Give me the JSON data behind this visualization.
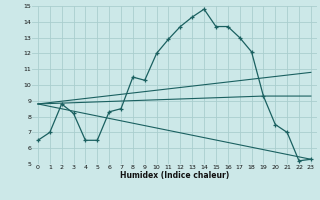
{
  "xlabel": "Humidex (Indice chaleur)",
  "bg_color": "#cce8e8",
  "grid_color": "#aacece",
  "line_color": "#1a6060",
  "xlim": [
    -0.5,
    23.5
  ],
  "ylim": [
    5,
    15
  ],
  "xticks": [
    0,
    1,
    2,
    3,
    4,
    5,
    6,
    7,
    8,
    9,
    10,
    11,
    12,
    13,
    14,
    15,
    16,
    17,
    18,
    19,
    20,
    21,
    22,
    23
  ],
  "yticks": [
    5,
    6,
    7,
    8,
    9,
    10,
    11,
    12,
    13,
    14,
    15
  ],
  "curve1_x": [
    0,
    1,
    2,
    3,
    4,
    5,
    6,
    7,
    8,
    9,
    10,
    11,
    12,
    13,
    14,
    15,
    16,
    17,
    18,
    19,
    20,
    21,
    22,
    23
  ],
  "curve1_y": [
    6.5,
    7.0,
    8.8,
    8.2,
    6.5,
    6.5,
    8.3,
    8.5,
    10.5,
    10.3,
    12.0,
    12.9,
    13.7,
    14.3,
    14.8,
    13.7,
    13.7,
    13.0,
    12.1,
    9.3,
    7.5,
    7.0,
    5.2,
    5.3
  ],
  "curve2_x": [
    0,
    23
  ],
  "curve2_y": [
    8.8,
    10.8
  ],
  "curve3_x": [
    0,
    23
  ],
  "curve3_y": [
    8.8,
    5.3
  ],
  "curve4_x": [
    0,
    19,
    22,
    23
  ],
  "curve4_y": [
    8.8,
    9.3,
    9.3,
    9.3
  ]
}
